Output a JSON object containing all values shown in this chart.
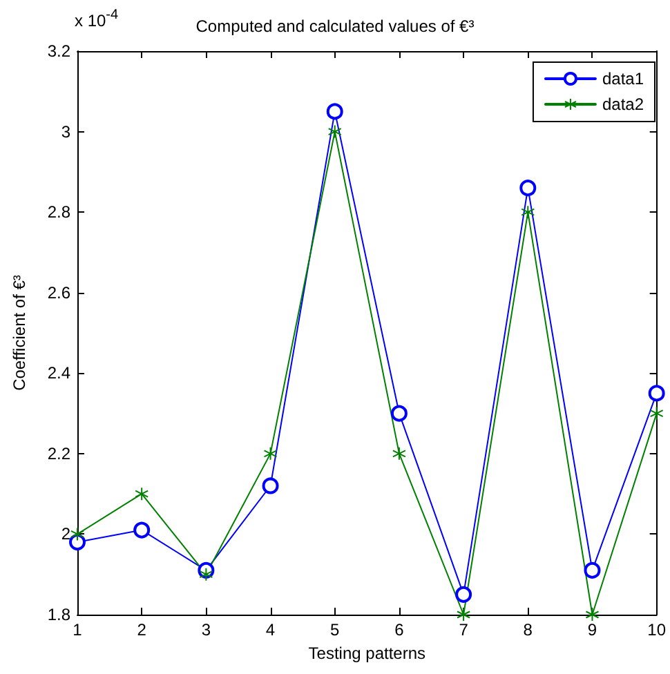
{
  "chart_data": {
    "type": "line",
    "title": "Computed and calculated values of €³",
    "xlabel": "Testing patterns",
    "ylabel": "Coefficient of €³",
    "annotations": [
      "x 10$^{-4}$"
    ],
    "x": [
      1,
      2,
      3,
      4,
      5,
      6,
      7,
      8,
      9,
      10
    ],
    "series": [
      {
        "name": "data1",
        "color": "#0000ff",
        "marker": "circle",
        "values": [
          1.98,
          2.01,
          1.91,
          2.12,
          3.05,
          2.3,
          1.85,
          2.86,
          1.91,
          2.35
        ]
      },
      {
        "name": "data2",
        "color": "#008000",
        "marker": "cross",
        "values": [
          2.0,
          2.1,
          1.9,
          2.2,
          3.0,
          2.2,
          1.8,
          2.8,
          1.8,
          2.3
        ]
      }
    ],
    "xlim": [
      1,
      10
    ],
    "xticks": [
      1,
      2,
      3,
      4,
      5,
      6,
      7,
      8,
      9,
      10
    ],
    "ylim": [
      1.8,
      3.2
    ],
    "yticks": [
      1.8,
      2,
      2.2,
      2.4,
      2.6,
      2.8,
      3,
      3.2
    ],
    "grid": false,
    "legend": "top right",
    "line_style": "solid"
  }
}
